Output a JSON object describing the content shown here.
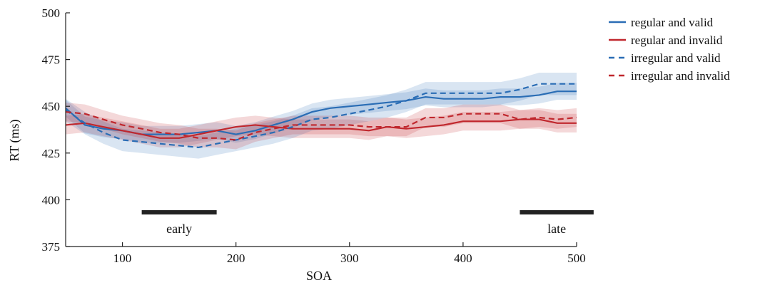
{
  "chart_data": {
    "type": "line",
    "title": "",
    "xlabel": "SOA",
    "ylabel": "RT (ms)",
    "xlim": [
      50,
      500
    ],
    "ylim": [
      375,
      500
    ],
    "xticks": [
      100,
      200,
      300,
      400,
      500
    ],
    "yticks": [
      375,
      400,
      425,
      450,
      475,
      500
    ],
    "grid": false,
    "legend_position": "top-right",
    "series": [
      {
        "name": "regular and valid",
        "color": "#2a6db5",
        "dash": "solid",
        "x": [
          50,
          67,
          83,
          100,
          117,
          133,
          150,
          167,
          183,
          200,
          217,
          233,
          250,
          267,
          283,
          300,
          317,
          333,
          350,
          367,
          383,
          400,
          417,
          433,
          450,
          467,
          483,
          500
        ],
        "y": [
          449,
          440,
          438,
          437,
          435,
          435,
          435,
          436,
          437,
          435,
          437,
          440,
          443,
          447,
          449,
          450,
          451,
          452,
          453,
          455,
          454,
          454,
          454,
          455,
          455,
          456,
          458,
          458
        ],
        "ci": 4.5
      },
      {
        "name": "regular and invalid",
        "color": "#c0272d",
        "dash": "solid",
        "x": [
          50,
          67,
          83,
          100,
          117,
          133,
          150,
          167,
          183,
          200,
          217,
          233,
          250,
          267,
          283,
          300,
          317,
          333,
          350,
          367,
          383,
          400,
          417,
          433,
          450,
          467,
          483,
          500
        ],
        "y": [
          440,
          441,
          439,
          437,
          435,
          433,
          433,
          435,
          437,
          439,
          440,
          439,
          438,
          438,
          438,
          438,
          437,
          439,
          438,
          439,
          440,
          442,
          442,
          442,
          443,
          443,
          441,
          441
        ],
        "ci": 5
      },
      {
        "name": "irregular and valid",
        "color": "#2a6db5",
        "dash": "dashed",
        "x": [
          50,
          67,
          83,
          100,
          117,
          133,
          150,
          167,
          183,
          200,
          217,
          233,
          250,
          267,
          283,
          300,
          317,
          333,
          350,
          367,
          383,
          400,
          417,
          433,
          450,
          467,
          483,
          500
        ],
        "y": [
          448,
          441,
          436,
          432,
          431,
          430,
          429,
          428,
          430,
          432,
          434,
          436,
          439,
          443,
          444,
          446,
          448,
          450,
          453,
          457,
          457,
          457,
          457,
          457,
          459,
          462,
          462,
          462
        ],
        "ci": 6
      },
      {
        "name": "irregular and invalid",
        "color": "#c0272d",
        "dash": "dashed",
        "x": [
          50,
          67,
          83,
          100,
          117,
          133,
          150,
          167,
          183,
          200,
          217,
          233,
          250,
          267,
          283,
          300,
          317,
          333,
          350,
          367,
          383,
          400,
          417,
          433,
          450,
          467,
          483,
          500
        ],
        "y": [
          447,
          446,
          443,
          440,
          438,
          436,
          435,
          433,
          433,
          432,
          436,
          438,
          440,
          440,
          440,
          440,
          439,
          439,
          439,
          444,
          444,
          446,
          446,
          446,
          443,
          444,
          443,
          444
        ],
        "ci": 5
      }
    ],
    "windows": [
      {
        "label": "early",
        "x_start": 117,
        "x_end": 183
      },
      {
        "label": "late",
        "x_start": 450,
        "x_end": 515
      }
    ]
  }
}
